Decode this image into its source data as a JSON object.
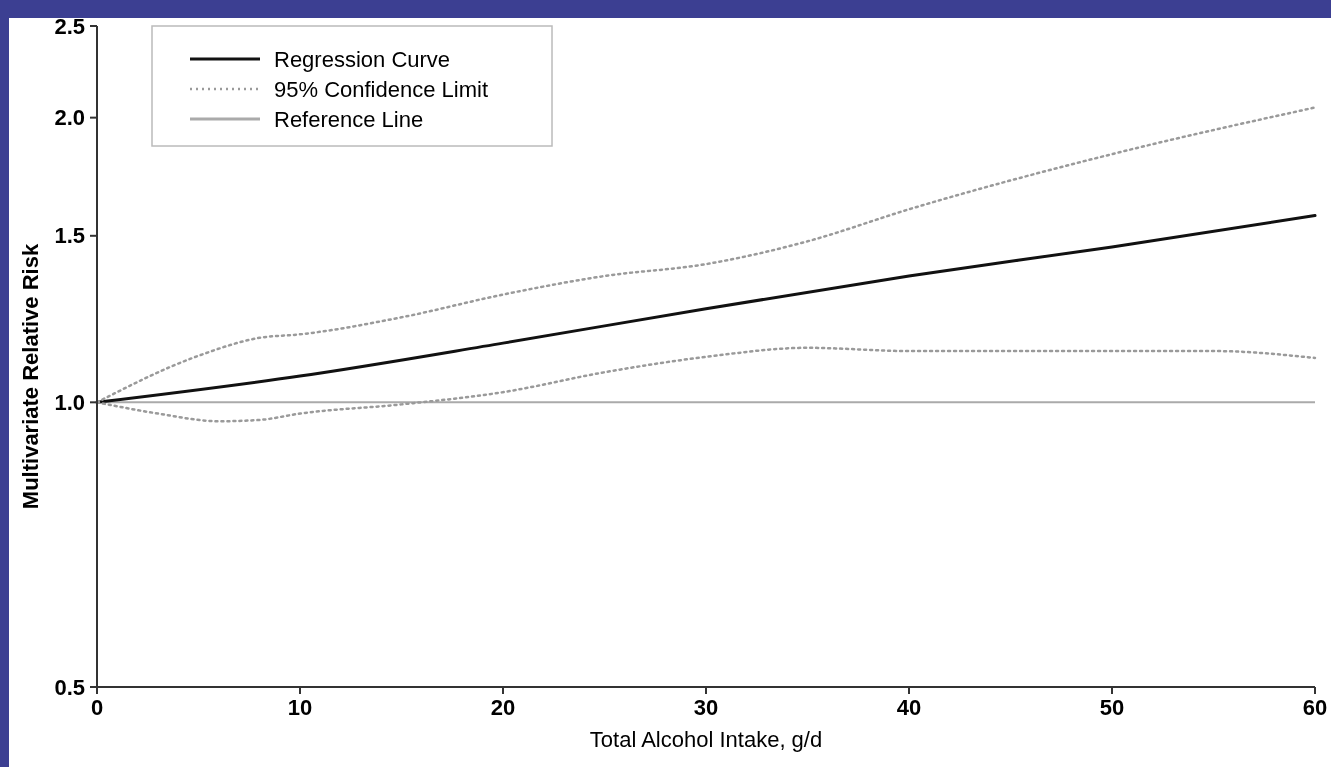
{
  "chart_data": {
    "type": "line",
    "xlabel": "Total Alcohol Intake, g/d",
    "ylabel": "Multivariate Relative Risk",
    "log": "y",
    "xlim": [
      0,
      60
    ],
    "xticks": [
      0,
      10,
      20,
      30,
      40,
      50,
      60
    ],
    "ylim": [
      0.5,
      2.5
    ],
    "yticks": [
      {
        "value": 0.5,
        "label": "0.5"
      },
      {
        "value": 1,
        "label": "1.0"
      },
      {
        "value": 1.5,
        "label": "1.5"
      },
      {
        "value": 2,
        "label": "2.0"
      },
      {
        "value": 2.5,
        "label": "2.5"
      }
    ],
    "legend": "top left",
    "grid": false,
    "series": [
      {
        "name": "Regression Curve",
        "color": "#111111",
        "line_style": "solid",
        "x": [
          0,
          10,
          20,
          30,
          40,
          50,
          60
        ],
        "values": [
          1.0,
          1.066,
          1.155,
          1.256,
          1.36,
          1.46,
          1.576
        ]
      },
      {
        "name": "95% Confidence Limit",
        "color": "#9a9a9a",
        "line_style": "dotted",
        "x": [
          0,
          5,
          8,
          10,
          15,
          20,
          25,
          30,
          35,
          40,
          50,
          60
        ],
        "values": [
          1.0,
          1.12,
          1.17,
          1.18,
          1.23,
          1.3,
          1.36,
          1.4,
          1.48,
          1.6,
          1.83,
          2.05
        ]
      },
      {
        "color": "#9a9a9a",
        "line_style": "dotted",
        "x": [
          0,
          3,
          6,
          8,
          10,
          15,
          20,
          25,
          30,
          35,
          40,
          50,
          55,
          60
        ],
        "values": [
          1.0,
          0.973,
          0.955,
          0.958,
          0.973,
          0.995,
          1.025,
          1.076,
          1.117,
          1.142,
          1.133,
          1.133,
          1.133,
          1.114
        ]
      }
    ],
    "ref_lines": [
      {
        "axis": "y",
        "value": 1,
        "label": "Reference Line",
        "color": "#aaaaaa",
        "line_style": "solid"
      }
    ]
  }
}
